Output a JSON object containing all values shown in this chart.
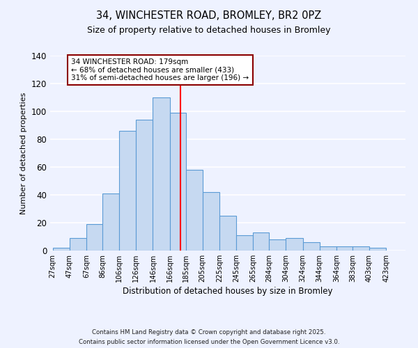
{
  "title": "34, WINCHESTER ROAD, BROMLEY, BR2 0PZ",
  "subtitle": "Size of property relative to detached houses in Bromley",
  "xlabel": "Distribution of detached houses by size in Bromley",
  "ylabel": "Number of detached properties",
  "bar_labels": [
    "27sqm",
    "47sqm",
    "67sqm",
    "86sqm",
    "106sqm",
    "126sqm",
    "146sqm",
    "166sqm",
    "185sqm",
    "205sqm",
    "225sqm",
    "245sqm",
    "265sqm",
    "284sqm",
    "304sqm",
    "324sqm",
    "344sqm",
    "364sqm",
    "383sqm",
    "403sqm",
    "423sqm"
  ],
  "bar_values": [
    2,
    9,
    19,
    41,
    86,
    94,
    110,
    99,
    58,
    42,
    25,
    11,
    13,
    8,
    9,
    6,
    3,
    3,
    3,
    2
  ],
  "bar_color": "#c6d9f1",
  "bar_edge_color": "#5b9bd5",
  "vline_x": 179,
  "vline_color": "red",
  "bin_edges": [
    27,
    47,
    67,
    86,
    106,
    126,
    146,
    166,
    185,
    205,
    225,
    245,
    265,
    284,
    304,
    324,
    344,
    364,
    383,
    403,
    423
  ],
  "annotation_text": "34 WINCHESTER ROAD: 179sqm\n← 68% of detached houses are smaller (433)\n31% of semi-detached houses are larger (196) →",
  "annotation_box_color": "white",
  "annotation_box_edge": "#8b0000",
  "ylim": [
    0,
    140
  ],
  "yticks": [
    0,
    20,
    40,
    60,
    80,
    100,
    120,
    140
  ],
  "footnote1": "Contains HM Land Registry data © Crown copyright and database right 2025.",
  "footnote2": "Contains public sector information licensed under the Open Government Licence v3.0.",
  "background_color": "#eef2ff",
  "grid_color": "white"
}
